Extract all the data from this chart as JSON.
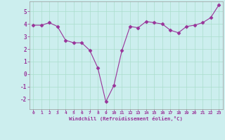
{
  "x": [
    0,
    1,
    2,
    3,
    4,
    5,
    6,
    7,
    8,
    9,
    10,
    11,
    12,
    13,
    14,
    15,
    16,
    17,
    18,
    19,
    20,
    21,
    22,
    23
  ],
  "y": [
    3.9,
    3.9,
    4.1,
    3.8,
    2.7,
    2.5,
    2.5,
    1.9,
    0.5,
    -2.2,
    -0.9,
    1.9,
    3.8,
    3.7,
    4.2,
    4.1,
    4.0,
    3.5,
    3.3,
    3.8,
    3.9,
    4.1,
    4.5,
    5.5
  ],
  "line_color": "#993399",
  "marker": "D",
  "marker_size": 2.5,
  "bg_color": "#cceeee",
  "grid_color": "#aaddcc",
  "xlabel": "Windchill (Refroidissement éolien,°C)",
  "xlabel_color": "#993399",
  "tick_color": "#993399",
  "spine_color": "#999999",
  "ylim": [
    -2.8,
    5.8
  ],
  "xlim": [
    -0.5,
    23.5
  ],
  "yticks": [
    -2,
    -1,
    0,
    1,
    2,
    3,
    4,
    5
  ],
  "xticks": [
    0,
    1,
    2,
    3,
    4,
    5,
    6,
    7,
    8,
    9,
    10,
    11,
    12,
    13,
    14,
    15,
    16,
    17,
    18,
    19,
    20,
    21,
    22,
    23
  ]
}
